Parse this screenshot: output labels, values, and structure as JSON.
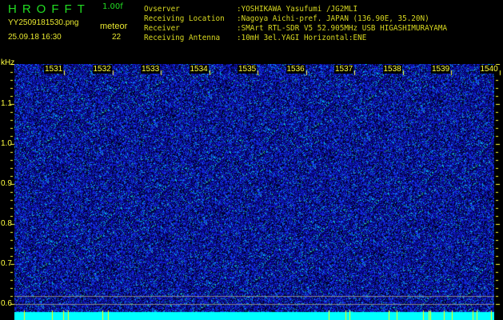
{
  "app": {
    "title": "HROFFT",
    "version": "1.00f"
  },
  "file": {
    "name": "YY2509181530.png",
    "datetime": "25.09.18 16:30"
  },
  "meteor": {
    "label": "meteor",
    "count": "22"
  },
  "info": [
    {
      "label": "Ovserver",
      "value": ":YOSHIKAWA Yasufumi /JG2MLI"
    },
    {
      "label": "Receiving Location",
      "value": ":Nagoya Aichi-pref. JAPAN (136.90E, 35.20N)"
    },
    {
      "label": "Receiver",
      "value": ":SMArt RTL-SDR V5 52.905MHz USB HIGASHIMURAYAMA"
    },
    {
      "label": "Receiving Antenna",
      "value": ":10mH 3el.YAGI Horizontal:ENE"
    }
  ],
  "axis": {
    "y_unit": "kHz",
    "y_ticks": [
      "1.1",
      "1.0",
      "0.9",
      "0.8",
      "0.7",
      "0.6"
    ],
    "x_ticks": [
      "1531",
      "1532",
      "1533",
      "1534",
      "1535",
      "1536",
      "1537",
      "1538",
      "1539",
      "1540"
    ]
  },
  "colors": {
    "text": "#e8e830",
    "title": "#22dd22",
    "background": "#000000",
    "noise": "#1a1acc",
    "baseline": "#00ffff",
    "meteor_mark": "#ffff00"
  }
}
